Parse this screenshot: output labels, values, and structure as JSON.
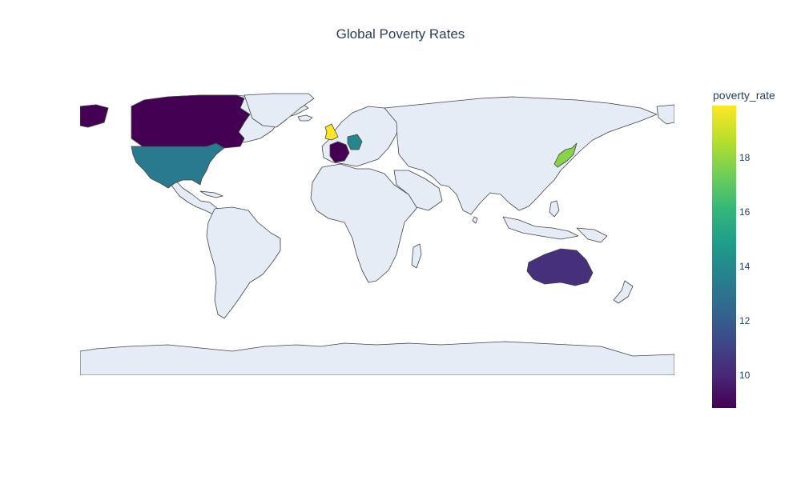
{
  "chart_data": {
    "type": "choropleth",
    "title": "Global Poverty Rates",
    "colorbar": {
      "title": "poverty_rate",
      "colorscale": "Viridis",
      "range": [
        8.8,
        19.9
      ],
      "ticks": [
        10,
        12,
        14,
        16,
        18
      ]
    },
    "countries": [
      {
        "name": "United Kingdom",
        "poverty_rate": 19.9
      },
      {
        "name": "Japan",
        "poverty_rate": 17.8
      },
      {
        "name": "Germany",
        "poverty_rate": 13.9
      },
      {
        "name": "United States",
        "poverty_rate": 13.3
      },
      {
        "name": "Australia",
        "poverty_rate": 10.3
      },
      {
        "name": "Canada",
        "poverty_rate": 8.8
      },
      {
        "name": "France",
        "poverty_rate": 8.8
      }
    ],
    "colors": {
      "land": "#e5ecf6",
      "coast": "#444444",
      "ocean": "#ffffff"
    }
  }
}
